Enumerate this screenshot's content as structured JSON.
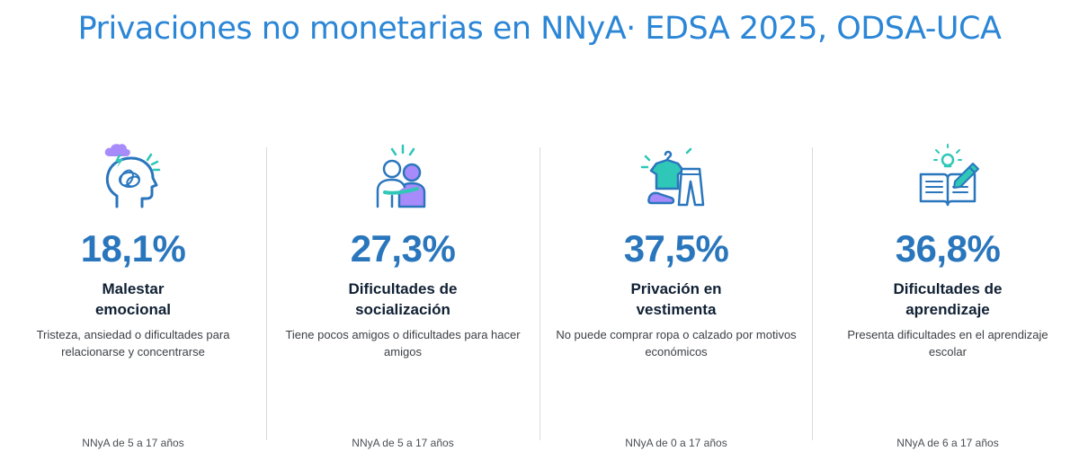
{
  "title": "Privaciones no monetarias en NNyA· EDSA 2025, ODSA-UCA",
  "cards": [
    {
      "icon": "brain-stress-icon",
      "value": "18,1%",
      "label_line1": "Malestar",
      "label_line2": "emocional",
      "description": "Tristeza, ansiedad o dificultades para relacionarse y concentrarse",
      "footnote": "NNyA de 5 a 17 años"
    },
    {
      "icon": "people-hug-icon",
      "value": "27,3%",
      "label_line1": "Dificultades de",
      "label_line2": "socialización",
      "description": "Tiene pocos amigos o dificultades para hacer amigos",
      "footnote": "NNyA de 5 a 17 años"
    },
    {
      "icon": "clothes-icon",
      "value": "37,5%",
      "label_line1": "Privación en",
      "label_line2": "vestimenta",
      "description": "No puede comprar ropa o calzado por motivos económicos",
      "footnote": "NNyA de 0 a 17 años"
    },
    {
      "icon": "book-idea-icon",
      "value": "36,8%",
      "label_line1": "Dificultades de",
      "label_line2": "aprendizaje",
      "description": "Presenta dificultades en el aprendizaje escolar",
      "footnote": "NNyA de 6 a 17 años"
    }
  ],
  "colors": {
    "title": "#2B86D6",
    "value": "#2A76BD",
    "accent_purple": "#A78BFA",
    "accent_teal": "#2FC7B8",
    "accent_blue": "#2A76BD"
  }
}
